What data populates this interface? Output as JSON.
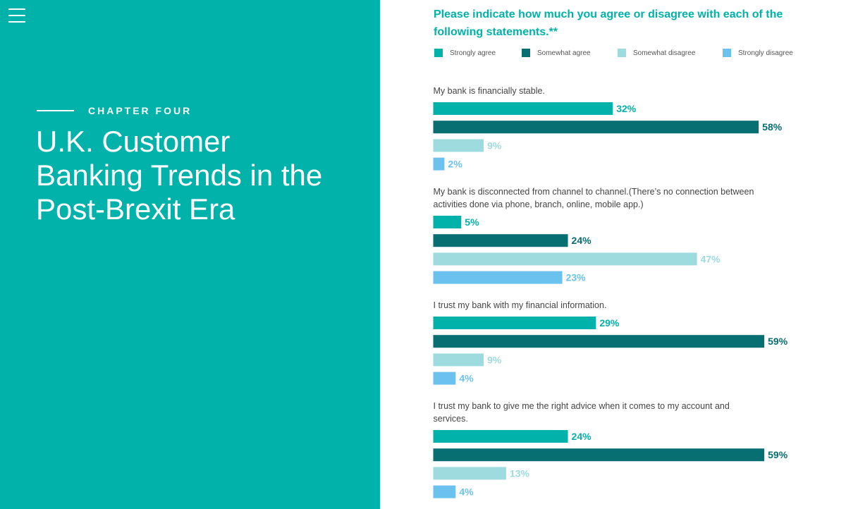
{
  "sidebar": {
    "chapter": "CHAPTER FOUR",
    "title": "U.K. Customer Banking Trends in the Post-Brexit Era"
  },
  "colors": {
    "brand_teal": "#00b2a9",
    "strongly_agree": "#00b2a9",
    "somewhat_agree": "#076e72",
    "somewhat_disagree": "#9edbdf",
    "strongly_disagree": "#6bc2ee"
  },
  "chart_data": {
    "type": "bar",
    "orientation": "horizontal",
    "title": "Please indicate how much you agree or disagree with each of the following statements.**",
    "legend_position": "top",
    "grid": false,
    "value_range": [
      0,
      100
    ],
    "value_unit": "%",
    "series": [
      {
        "name": "Strongly agree",
        "color": "#00b2a9"
      },
      {
        "name": "Somewhat agree",
        "color": "#076e72"
      },
      {
        "name": "Somewhat disagree",
        "color": "#9edbdf"
      },
      {
        "name": "Strongly disagree",
        "color": "#6bc2ee"
      }
    ],
    "groups": [
      {
        "statement": "My bank is financially stable.",
        "values": [
          32,
          58,
          9,
          2
        ]
      },
      {
        "statement": "My bank is disconnected from channel to channel.(There’s no connection between activities done via phone, branch, online, mobile app.)",
        "values": [
          5,
          24,
          47,
          23
        ]
      },
      {
        "statement": "I trust my bank with my financial information.",
        "values": [
          29,
          59,
          9,
          4
        ]
      },
      {
        "statement": "I trust my bank to give me the right advice when it comes to my account and services.",
        "values": [
          24,
          59,
          13,
          4
        ]
      }
    ]
  }
}
